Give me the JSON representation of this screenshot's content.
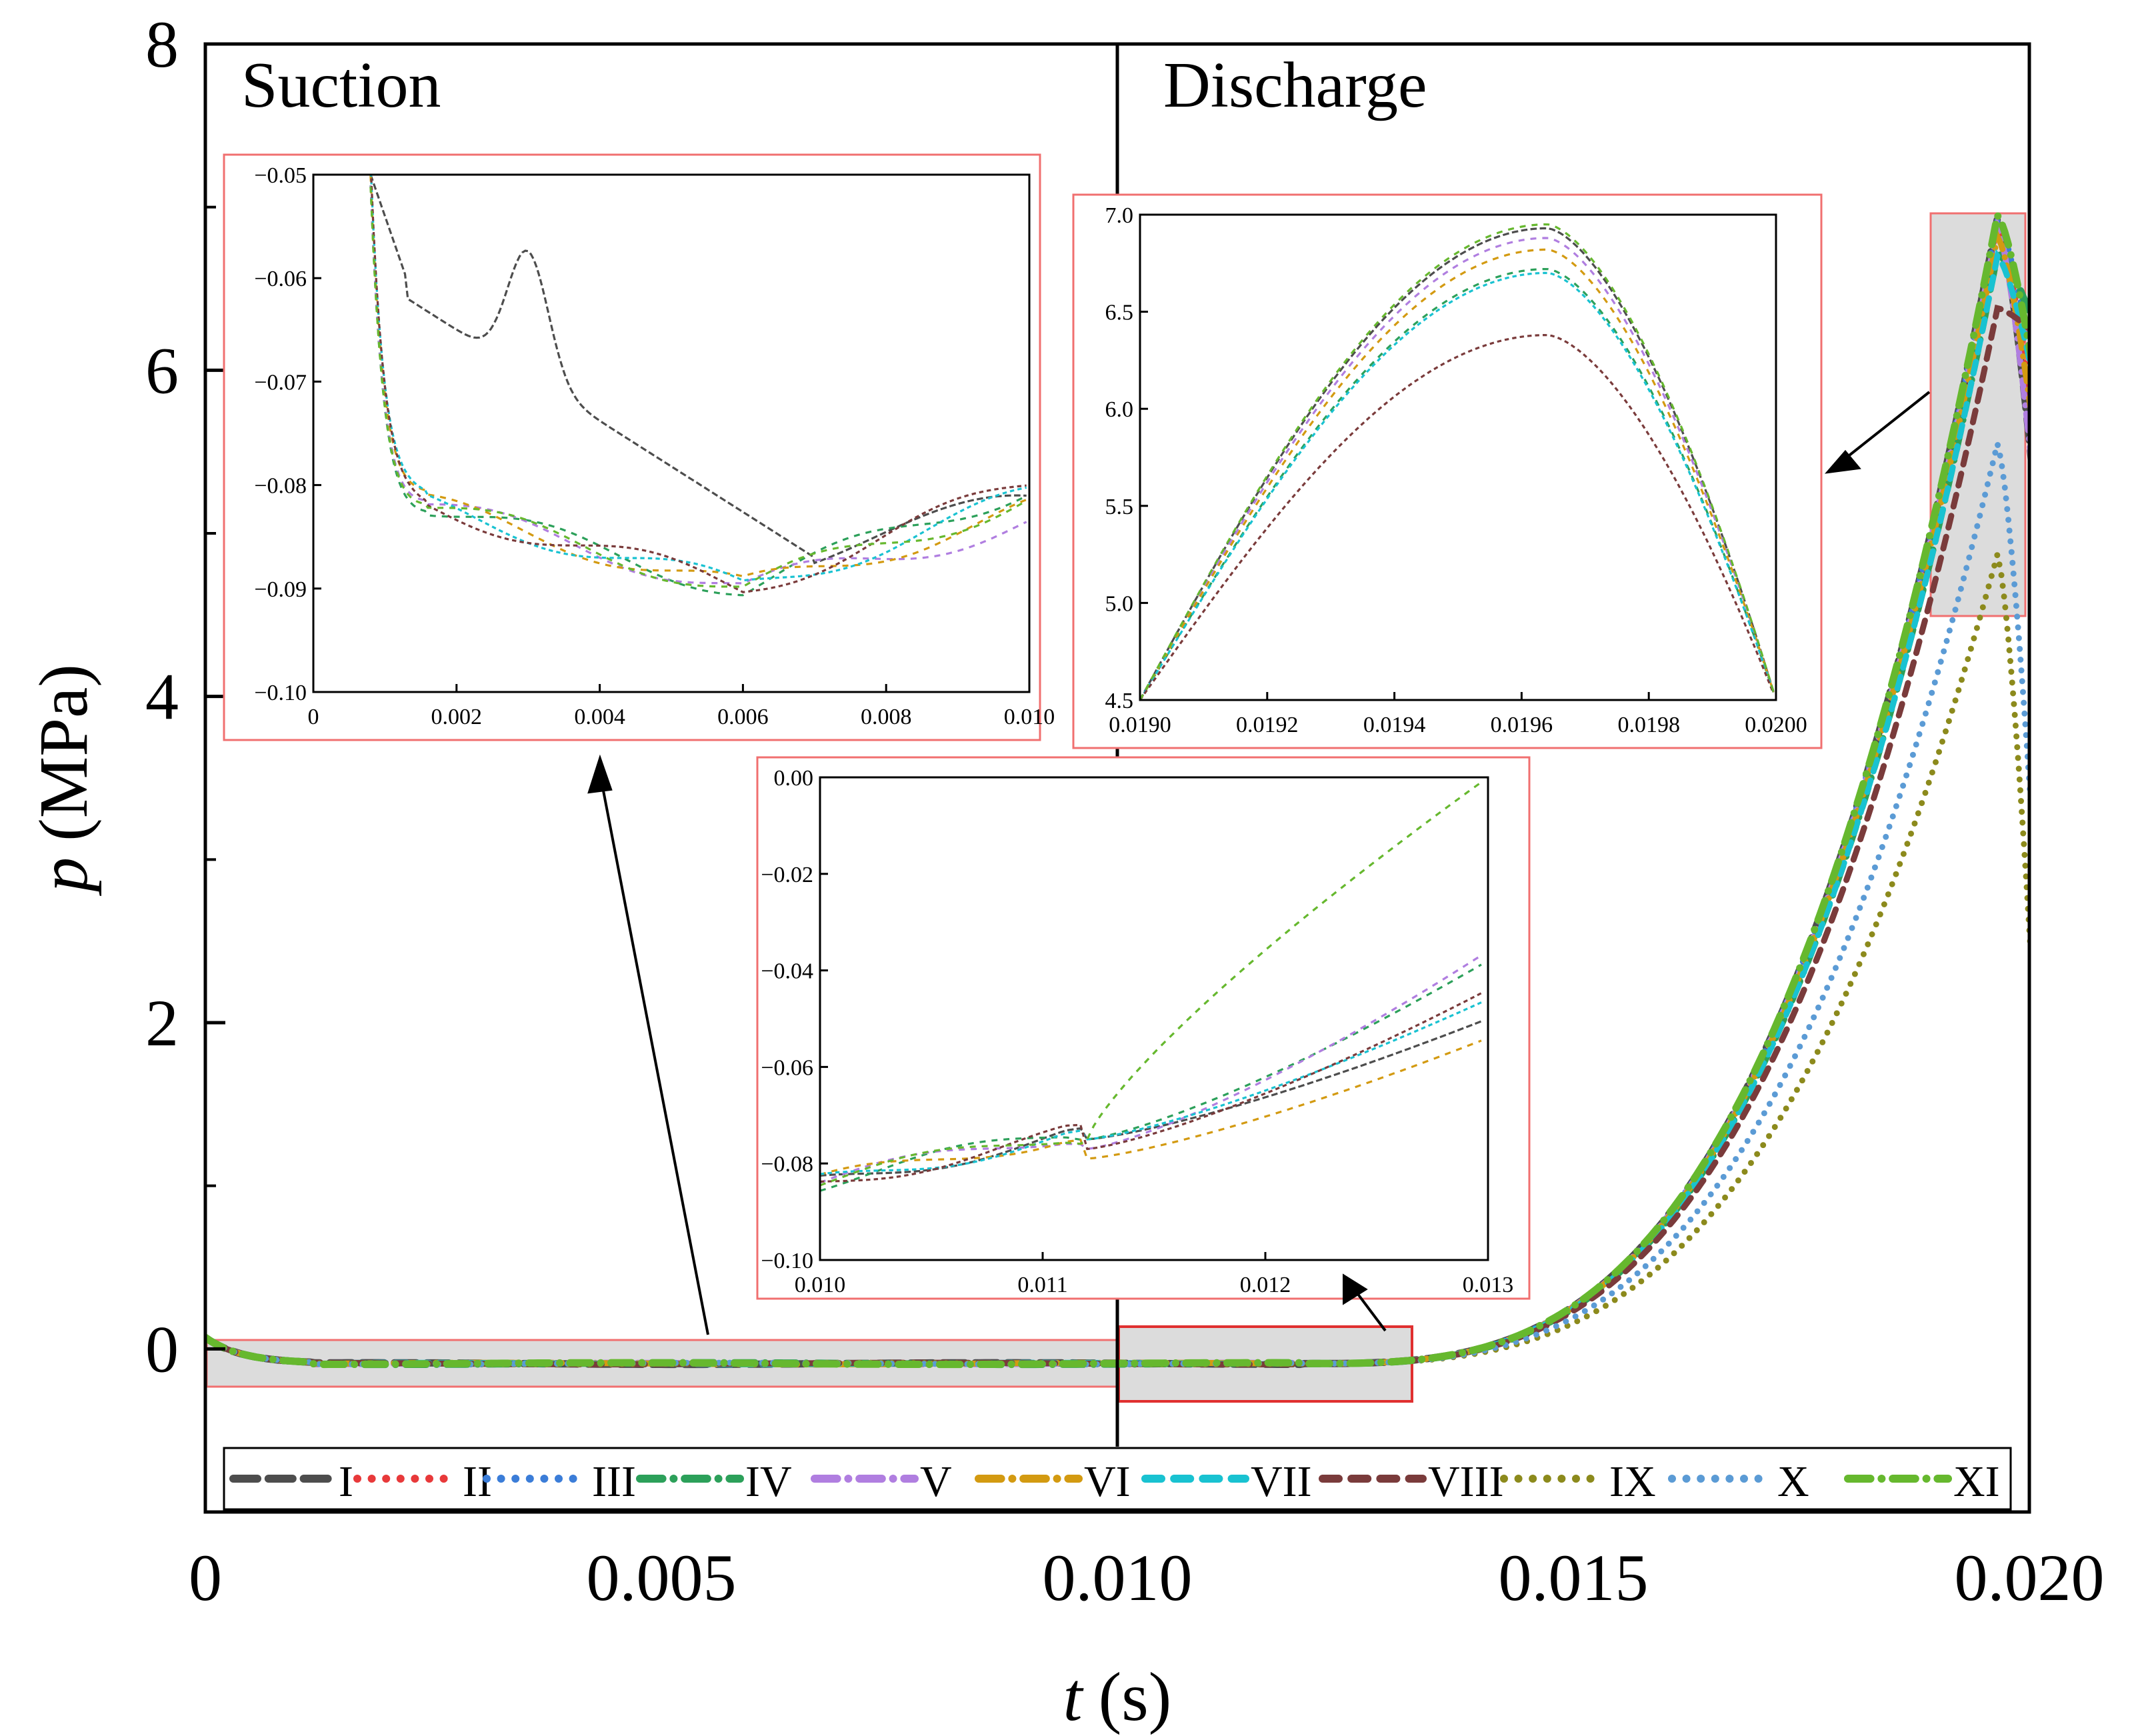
{
  "chart_data": {
    "type": "line",
    "xlabel_var": "t",
    "xlabel_unit": "(s)",
    "ylabel_var": "p",
    "ylabel_unit": "(MPa)",
    "xlim": [
      0,
      0.02
    ],
    "ylim": [
      -1,
      8
    ],
    "x_ticks": [
      "0",
      "0.005",
      "0.010",
      "0.015",
      "0.020"
    ],
    "y_ticks": [
      "0",
      "2",
      "4",
      "6",
      "8"
    ],
    "region_labels": [
      "Suction",
      "Discharge"
    ],
    "region_boundary_x": 0.01,
    "series": [
      {
        "name": "I",
        "color": "#4d4d4d",
        "dash": "long",
        "peak": 6.93
      },
      {
        "name": "II",
        "color": "#e8393a",
        "dash": "dot",
        "peak": 6.9
      },
      {
        "name": "III",
        "color": "#3b7dd8",
        "dash": "dot",
        "peak": 6.92
      },
      {
        "name": "IV",
        "color": "#2ca05a",
        "dash": "dashdot",
        "peak": 6.72
      },
      {
        "name": "V",
        "color": "#b07ee0",
        "dash": "dashdot",
        "peak": 6.88
      },
      {
        "name": "VI",
        "color": "#d39a11",
        "dash": "dashdot",
        "peak": 6.82
      },
      {
        "name": "VII",
        "color": "#19c2d1",
        "dash": "dash",
        "peak": 6.7
      },
      {
        "name": "VIII",
        "color": "#7a3b3b",
        "dash": "dash",
        "peak": 6.38
      },
      {
        "name": "IX",
        "color": "#8c8a1c",
        "dash": "dot",
        "peak": 4.87
      },
      {
        "name": "X",
        "color": "#5b9bd5",
        "dash": "dot",
        "peak": 5.55
      },
      {
        "name": "XI",
        "color": "#66b82e",
        "dash": "dashdot",
        "peak": 6.95
      }
    ],
    "insets": [
      {
        "name": "suction-inset",
        "xlim": [
          0,
          0.01
        ],
        "ylim": [
          -0.1,
          -0.05
        ],
        "x_ticks": [
          "0",
          "0.002",
          "0.004",
          "0.006",
          "0.008",
          "0.010"
        ],
        "y_ticks": [
          "-0.05",
          "-0.06",
          "-0.07",
          "-0.08",
          "-0.09",
          "-0.10"
        ]
      },
      {
        "name": "discharge-inset",
        "xlim": [
          0.019,
          0.02
        ],
        "ylim": [
          4.5,
          7.0
        ],
        "x_ticks": [
          "0.0190",
          "0.0192",
          "0.0194",
          "0.0196",
          "0.0198",
          "0.0200"
        ],
        "y_ticks": [
          "7.0",
          "6.5",
          "6.0",
          "5.5",
          "5.0",
          "4.5"
        ]
      },
      {
        "name": "transition-inset",
        "xlim": [
          0.01,
          0.013
        ],
        "ylim": [
          -0.1,
          0.0
        ],
        "x_ticks": [
          "0.010",
          "0.011",
          "0.012",
          "0.013"
        ],
        "y_ticks": [
          "0.00",
          "-0.02",
          "-0.04",
          "-0.06",
          "-0.08",
          "-0.10"
        ]
      }
    ]
  }
}
